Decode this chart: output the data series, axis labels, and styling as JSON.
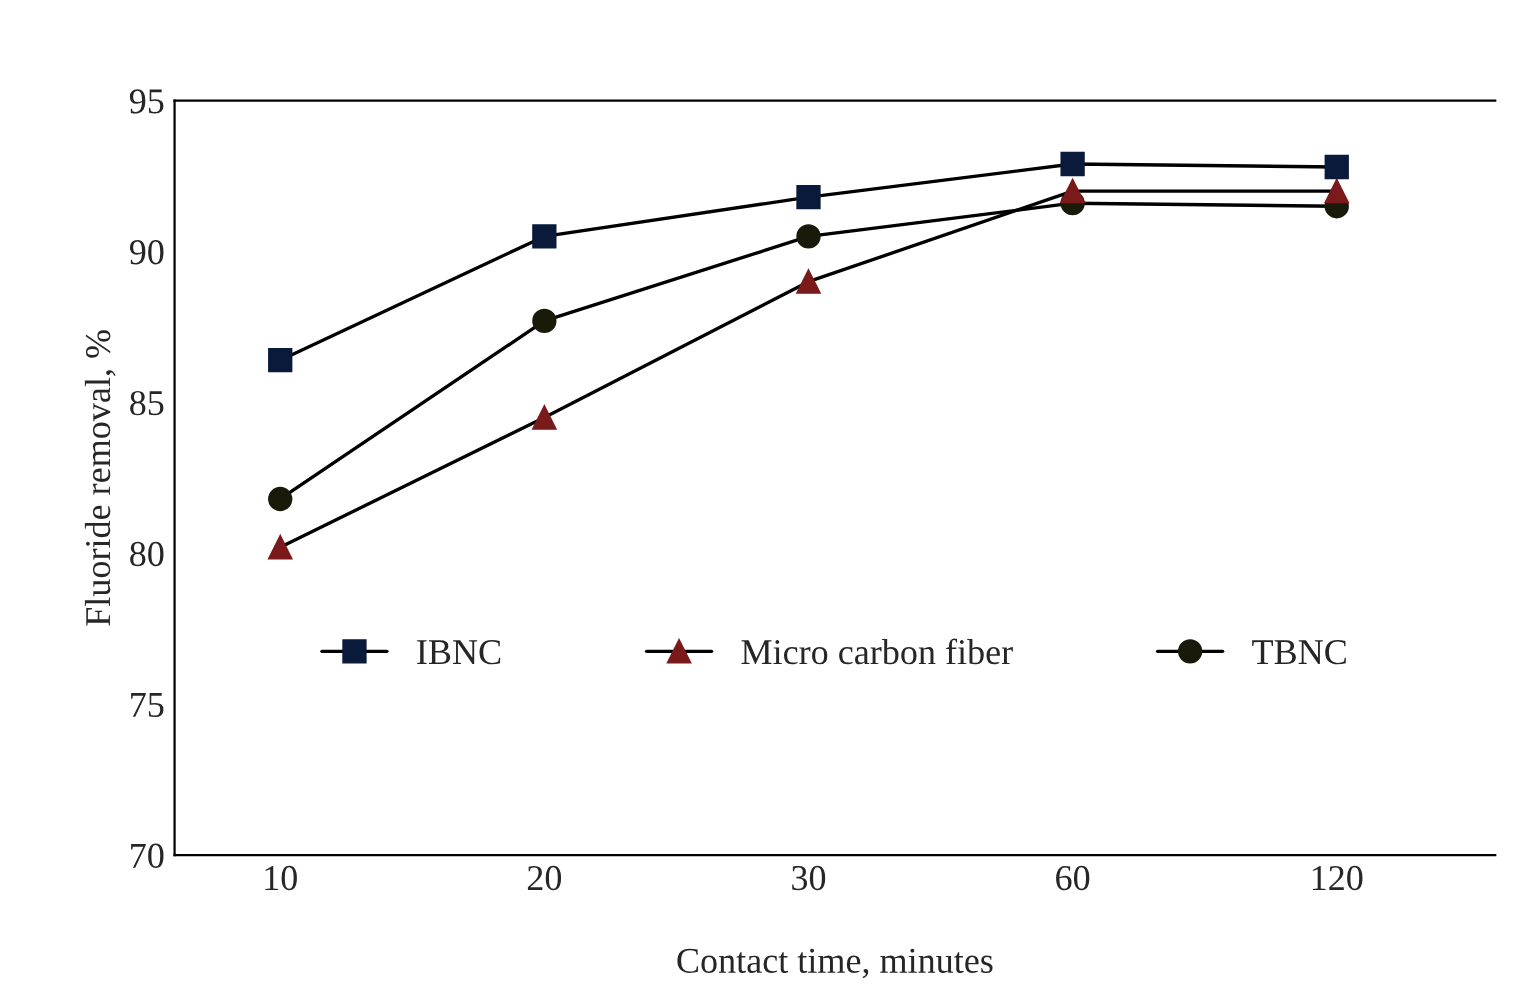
{
  "chart_data": {
    "type": "line",
    "xlabel": "Contact time, minutes",
    "ylabel": "Fluoride removal, %",
    "categories": [
      "10",
      "20",
      "30",
      "60",
      "120"
    ],
    "series": [
      {
        "name": "IBNC",
        "color": "#0a1a3a",
        "marker": "square",
        "values": [
          86.4,
          90.5,
          91.8,
          92.9,
          92.8
        ]
      },
      {
        "name": "Micro carbon fiber",
        "color": "#7a1a1a",
        "marker": "triangle",
        "values": [
          80.2,
          84.5,
          89.0,
          92.0,
          92.0
        ]
      },
      {
        "name": "TBNC",
        "color": "#1a1a0a",
        "marker": "circle",
        "values": [
          81.8,
          87.7,
          90.5,
          91.6,
          91.5
        ]
      }
    ],
    "ylim": [
      70,
      95
    ],
    "yticks": [
      70,
      75,
      80,
      85,
      90,
      95
    ],
    "grid": false,
    "legend": "bottom",
    "line_style": "solid"
  }
}
